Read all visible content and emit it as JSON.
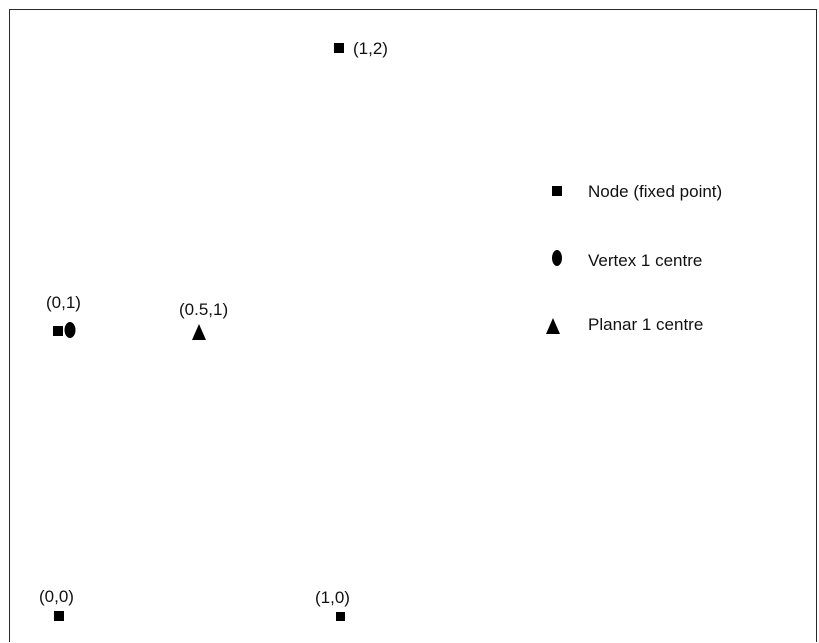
{
  "diagram": {
    "points": [
      {
        "id": "n00",
        "kind": "node",
        "label": "(0,0)"
      },
      {
        "id": "n10",
        "kind": "node",
        "label": "(1,0)"
      },
      {
        "id": "n01",
        "kind": "node",
        "label": "(0,1)"
      },
      {
        "id": "n12",
        "kind": "node",
        "label": "(1,2)"
      },
      {
        "id": "v1",
        "kind": "vertex",
        "label": ""
      },
      {
        "id": "p1",
        "kind": "planar",
        "label": "(0.5,1)"
      }
    ],
    "legend": [
      {
        "kind": "node",
        "label": "Node (fixed point)",
        "icon": "square-icon"
      },
      {
        "kind": "vertex",
        "label": "Vertex 1 centre",
        "icon": "ellipse-icon"
      },
      {
        "kind": "planar",
        "label": "Planar 1 centre",
        "icon": "triangle-icon"
      }
    ],
    "marker_color": "#000000"
  }
}
